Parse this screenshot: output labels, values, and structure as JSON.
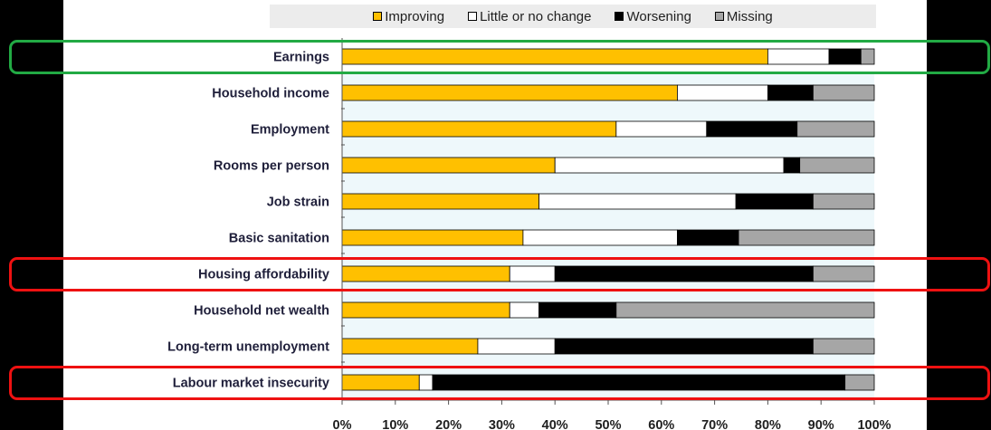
{
  "chart_data": {
    "type": "bar",
    "orientation": "horizontal",
    "stacked": true,
    "normalized": true,
    "legend_position": "top",
    "x_range": [
      0,
      100
    ],
    "x_ticks": [
      "0%",
      "10%",
      "20%",
      "30%",
      "40%",
      "50%",
      "60%",
      "70%",
      "80%",
      "90%",
      "100%"
    ],
    "categories": [
      "Earnings",
      "Household income",
      "Employment",
      "Rooms per person",
      "Job strain",
      "Basic sanitation",
      "Housing affordability",
      "Household net wealth",
      "Long-term unemployment",
      "Labour market insecurity"
    ],
    "series": [
      {
        "name": "Improving",
        "color": "#FFC000",
        "values": [
          80,
          63,
          51.5,
          40,
          37,
          34,
          31.5,
          31.5,
          25.5,
          14.5
        ]
      },
      {
        "name": "Little or no change",
        "color": "#FFFFFF",
        "values": [
          11.5,
          17,
          17,
          43,
          37,
          29,
          8.5,
          5.5,
          14.5,
          2.5
        ]
      },
      {
        "name": "Worsening",
        "color": "#000000",
        "values": [
          6,
          8.5,
          17,
          3,
          14.5,
          11.5,
          48.5,
          14.5,
          48.5,
          77.5
        ]
      },
      {
        "name": "Missing",
        "color": "#A6A6A6",
        "values": [
          2.5,
          11.5,
          14.5,
          14,
          11.5,
          25.5,
          11.5,
          48.5,
          11.5,
          5.5
        ]
      }
    ],
    "highlights": [
      {
        "category": "Earnings",
        "color": "#22AA44"
      },
      {
        "category": "Housing affordability",
        "color": "#EE1111"
      },
      {
        "category": "Labour market insecurity",
        "color": "#EE1111"
      }
    ]
  }
}
